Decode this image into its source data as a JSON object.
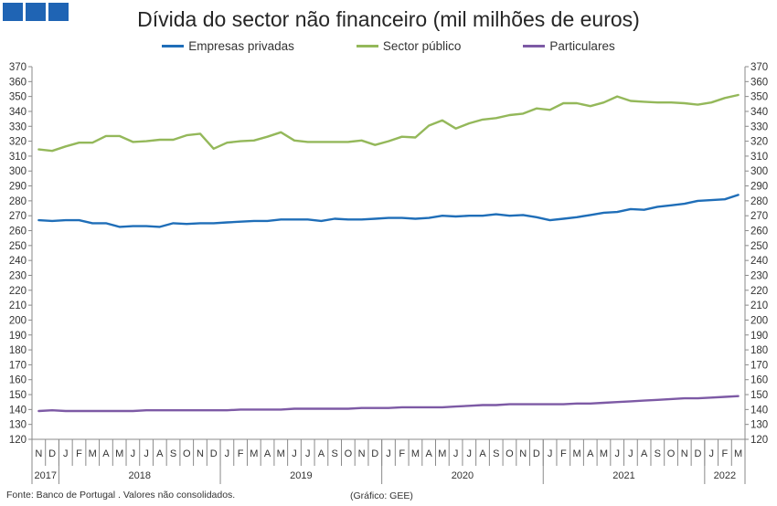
{
  "header": {
    "title": "Dívida do sector não financeiro (mil milhões de euros)"
  },
  "legend": [
    {
      "label": "Empresas privadas",
      "color": "#1f6eb8"
    },
    {
      "label": "Sector público",
      "color": "#94b85a"
    },
    {
      "label": "Particulares",
      "color": "#7d5aa5"
    }
  ],
  "footer": {
    "source": "Fonte: Banco de Portugal . Valores não consolidados.",
    "credit": "(Gráfico: GEE)"
  },
  "chart_data": {
    "type": "line",
    "title": "Dívida do sector não financeiro (mil milhões de euros)",
    "ylim": [
      120,
      370
    ],
    "y_step": 10,
    "y_axis": "both sides",
    "grid": false,
    "legend_position": "top",
    "x": [
      "N",
      "D",
      "J",
      "F",
      "M",
      "A",
      "M",
      "J",
      "J",
      "A",
      "S",
      "O",
      "N",
      "D",
      "J",
      "F",
      "M",
      "A",
      "M",
      "J",
      "J",
      "A",
      "S",
      "O",
      "N",
      "D",
      "J",
      "F",
      "M",
      "A",
      "M",
      "J",
      "J",
      "A",
      "S",
      "O",
      "N",
      "D",
      "J",
      "F",
      "M",
      "A",
      "M",
      "J",
      "J",
      "A",
      "S",
      "O",
      "N",
      "D",
      "J",
      "F",
      "M"
    ],
    "years": [
      {
        "label": "2017",
        "start": 0,
        "end": 1
      },
      {
        "label": "2018",
        "start": 2,
        "end": 13
      },
      {
        "label": "2019",
        "start": 14,
        "end": 25
      },
      {
        "label": "2020",
        "start": 26,
        "end": 37
      },
      {
        "label": "2021",
        "start": 38,
        "end": 49
      },
      {
        "label": "2022",
        "start": 50,
        "end": 52
      }
    ],
    "series": [
      {
        "name": "Empresas privadas",
        "color": "#1f6eb8",
        "values": [
          267,
          266.5,
          267,
          267,
          265,
          265,
          262.5,
          263,
          263,
          262.5,
          265,
          264.5,
          265,
          265,
          265.5,
          266,
          266.5,
          266.5,
          267.5,
          267.5,
          267.5,
          266.5,
          268,
          267.5,
          267.5,
          268,
          268.5,
          268.5,
          268,
          268.5,
          270,
          269.5,
          270,
          270,
          271,
          270,
          270.5,
          269,
          267,
          268,
          269,
          270.5,
          272,
          272.5,
          274.5,
          274,
          276,
          277,
          278,
          280,
          280.5,
          281,
          284
        ]
      },
      {
        "name": "Sector público",
        "color": "#94b85a",
        "values": [
          314.5,
          313.5,
          316.5,
          319,
          319,
          323.5,
          323.5,
          319.5,
          320,
          321,
          321,
          324,
          325,
          315,
          319,
          320,
          320.5,
          323,
          326,
          320.5,
          319.5,
          319.5,
          319.5,
          319.5,
          320.5,
          317.5,
          320,
          323,
          322.5,
          330.5,
          334,
          328.5,
          332,
          334.5,
          335.5,
          337.5,
          338.5,
          342,
          341,
          345.5,
          345.5,
          343.5,
          346,
          350,
          347,
          346.5,
          346,
          346,
          345.5,
          344.5,
          346,
          349,
          351
        ]
      },
      {
        "name": "Particulares",
        "color": "#7d5aa5",
        "values": [
          139,
          139.5,
          139,
          139,
          139,
          139,
          139,
          139,
          139.5,
          139.5,
          139.5,
          139.5,
          139.5,
          139.5,
          139.5,
          140,
          140,
          140,
          140,
          140.5,
          140.5,
          140.5,
          140.5,
          140.5,
          141,
          141,
          141,
          141.5,
          141.5,
          141.5,
          141.5,
          142,
          142.5,
          143,
          143,
          143.5,
          143.5,
          143.5,
          143.5,
          143.5,
          144,
          144,
          144.5,
          145,
          145.5,
          146,
          146.5,
          147,
          147.5,
          147.5,
          148,
          148.5,
          149
        ]
      }
    ]
  }
}
